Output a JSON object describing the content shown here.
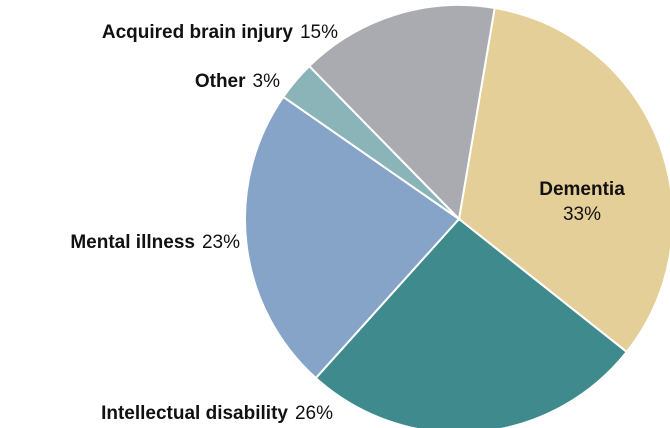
{
  "chart_data": {
    "type": "pie",
    "categories": [
      "Dementia",
      "Intellectual disability",
      "Mental illness",
      "Other",
      "Acquired brain injury"
    ],
    "values": [
      33,
      26,
      23,
      3,
      15
    ],
    "value_labels": [
      "33%",
      "26%",
      "23%",
      "3%",
      "15%"
    ],
    "colors": [
      "#e5cf98",
      "#3f8a8c",
      "#86a4c8",
      "#8ab4b8",
      "#aaabb0"
    ]
  }
}
